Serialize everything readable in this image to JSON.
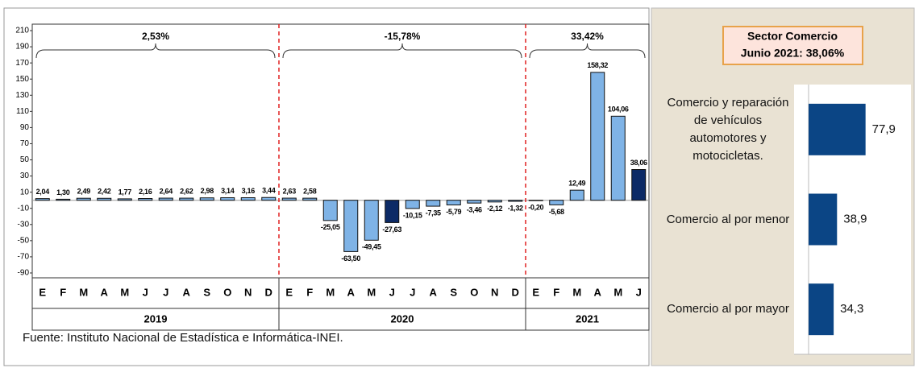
{
  "chart_data": [
    {
      "type": "bar",
      "ylim": [
        -96,
        218
      ],
      "yticks": [
        210,
        190,
        170,
        150,
        130,
        110,
        90,
        70,
        50,
        30,
        10,
        -10,
        -30,
        -50,
        -70,
        -90
      ],
      "groups": [
        {
          "label": "2019",
          "annotation": "2,53%",
          "color": "#7fb3e6",
          "categories": [
            "E",
            "F",
            "M",
            "A",
            "M",
            "J",
            "J",
            "A",
            "S",
            "O",
            "N",
            "D"
          ],
          "values": [
            2.04,
            1.3,
            2.49,
            2.42,
            1.77,
            2.16,
            2.64,
            2.62,
            2.98,
            3.14,
            3.16,
            3.44
          ],
          "value_labels": [
            "2,04",
            "1,30",
            "2,49",
            "2,42",
            "1,77",
            "2,16",
            "2,64",
            "2,62",
            "2,98",
            "3,14",
            "3,16",
            "3,44"
          ],
          "colors": [
            "#7fb3e6",
            "#7fb3e6",
            "#7fb3e6",
            "#7fb3e6",
            "#7fb3e6",
            "#7fb3e6",
            "#7fb3e6",
            "#7fb3e6",
            "#7fb3e6",
            "#7fb3e6",
            "#7fb3e6",
            "#7fb3e6"
          ]
        },
        {
          "label": "2020",
          "annotation": "-15,78%",
          "categories": [
            "E",
            "F",
            "M",
            "A",
            "M",
            "J",
            "J",
            "A",
            "S",
            "O",
            "N",
            "D"
          ],
          "values": [
            2.63,
            2.58,
            -25.05,
            -63.5,
            -49.45,
            -27.63,
            -10.15,
            -7.35,
            -5.79,
            -3.46,
            -2.12,
            -1.32
          ],
          "value_labels": [
            "2,63",
            "2,58",
            "-25,05",
            "-63,50",
            "-49,45",
            "-27,63",
            "-10,15",
            "-7,35",
            "-5,79",
            "-3,46",
            "-2,12",
            "-1,32"
          ],
          "colors": [
            "#7fb3e6",
            "#7fb3e6",
            "#7fb3e6",
            "#7fb3e6",
            "#7fb3e6",
            "#0c2a66",
            "#7fb3e6",
            "#7fb3e6",
            "#7fb3e6",
            "#7fb3e6",
            "#7fb3e6",
            "#7fb3e6"
          ]
        },
        {
          "label": "2021",
          "annotation": "33,42%",
          "categories": [
            "E",
            "F",
            "M",
            "A",
            "M",
            "J"
          ],
          "values": [
            -0.2,
            -5.68,
            12.49,
            158.32,
            104.06,
            38.06
          ],
          "value_labels": [
            "-0,20",
            "-5,68",
            "12,49",
            "158,32",
            "104,06",
            "38,06"
          ],
          "colors": [
            "#7fb3e6",
            "#7fb3e6",
            "#7fb3e6",
            "#7fb3e6",
            "#7fb3e6",
            "#0c2a66"
          ]
        }
      ],
      "source": "Fuente: Instituto Nacional de Estadística e Informática-INEI."
    },
    {
      "type": "hbar",
      "title": "Sector Comercio",
      "subtitle": "Junio 2021: 38,06%",
      "categories": [
        "Comercio y reparación de vehículos automotores y motocicletas.",
        "Comercio al por menor",
        "Comercio al por mayor"
      ],
      "values": [
        77.9,
        38.9,
        34.3
      ],
      "value_labels": [
        "77,9",
        "38,9",
        "34,3"
      ],
      "color": "#0b4585",
      "xlim": [
        0,
        140
      ]
    }
  ]
}
